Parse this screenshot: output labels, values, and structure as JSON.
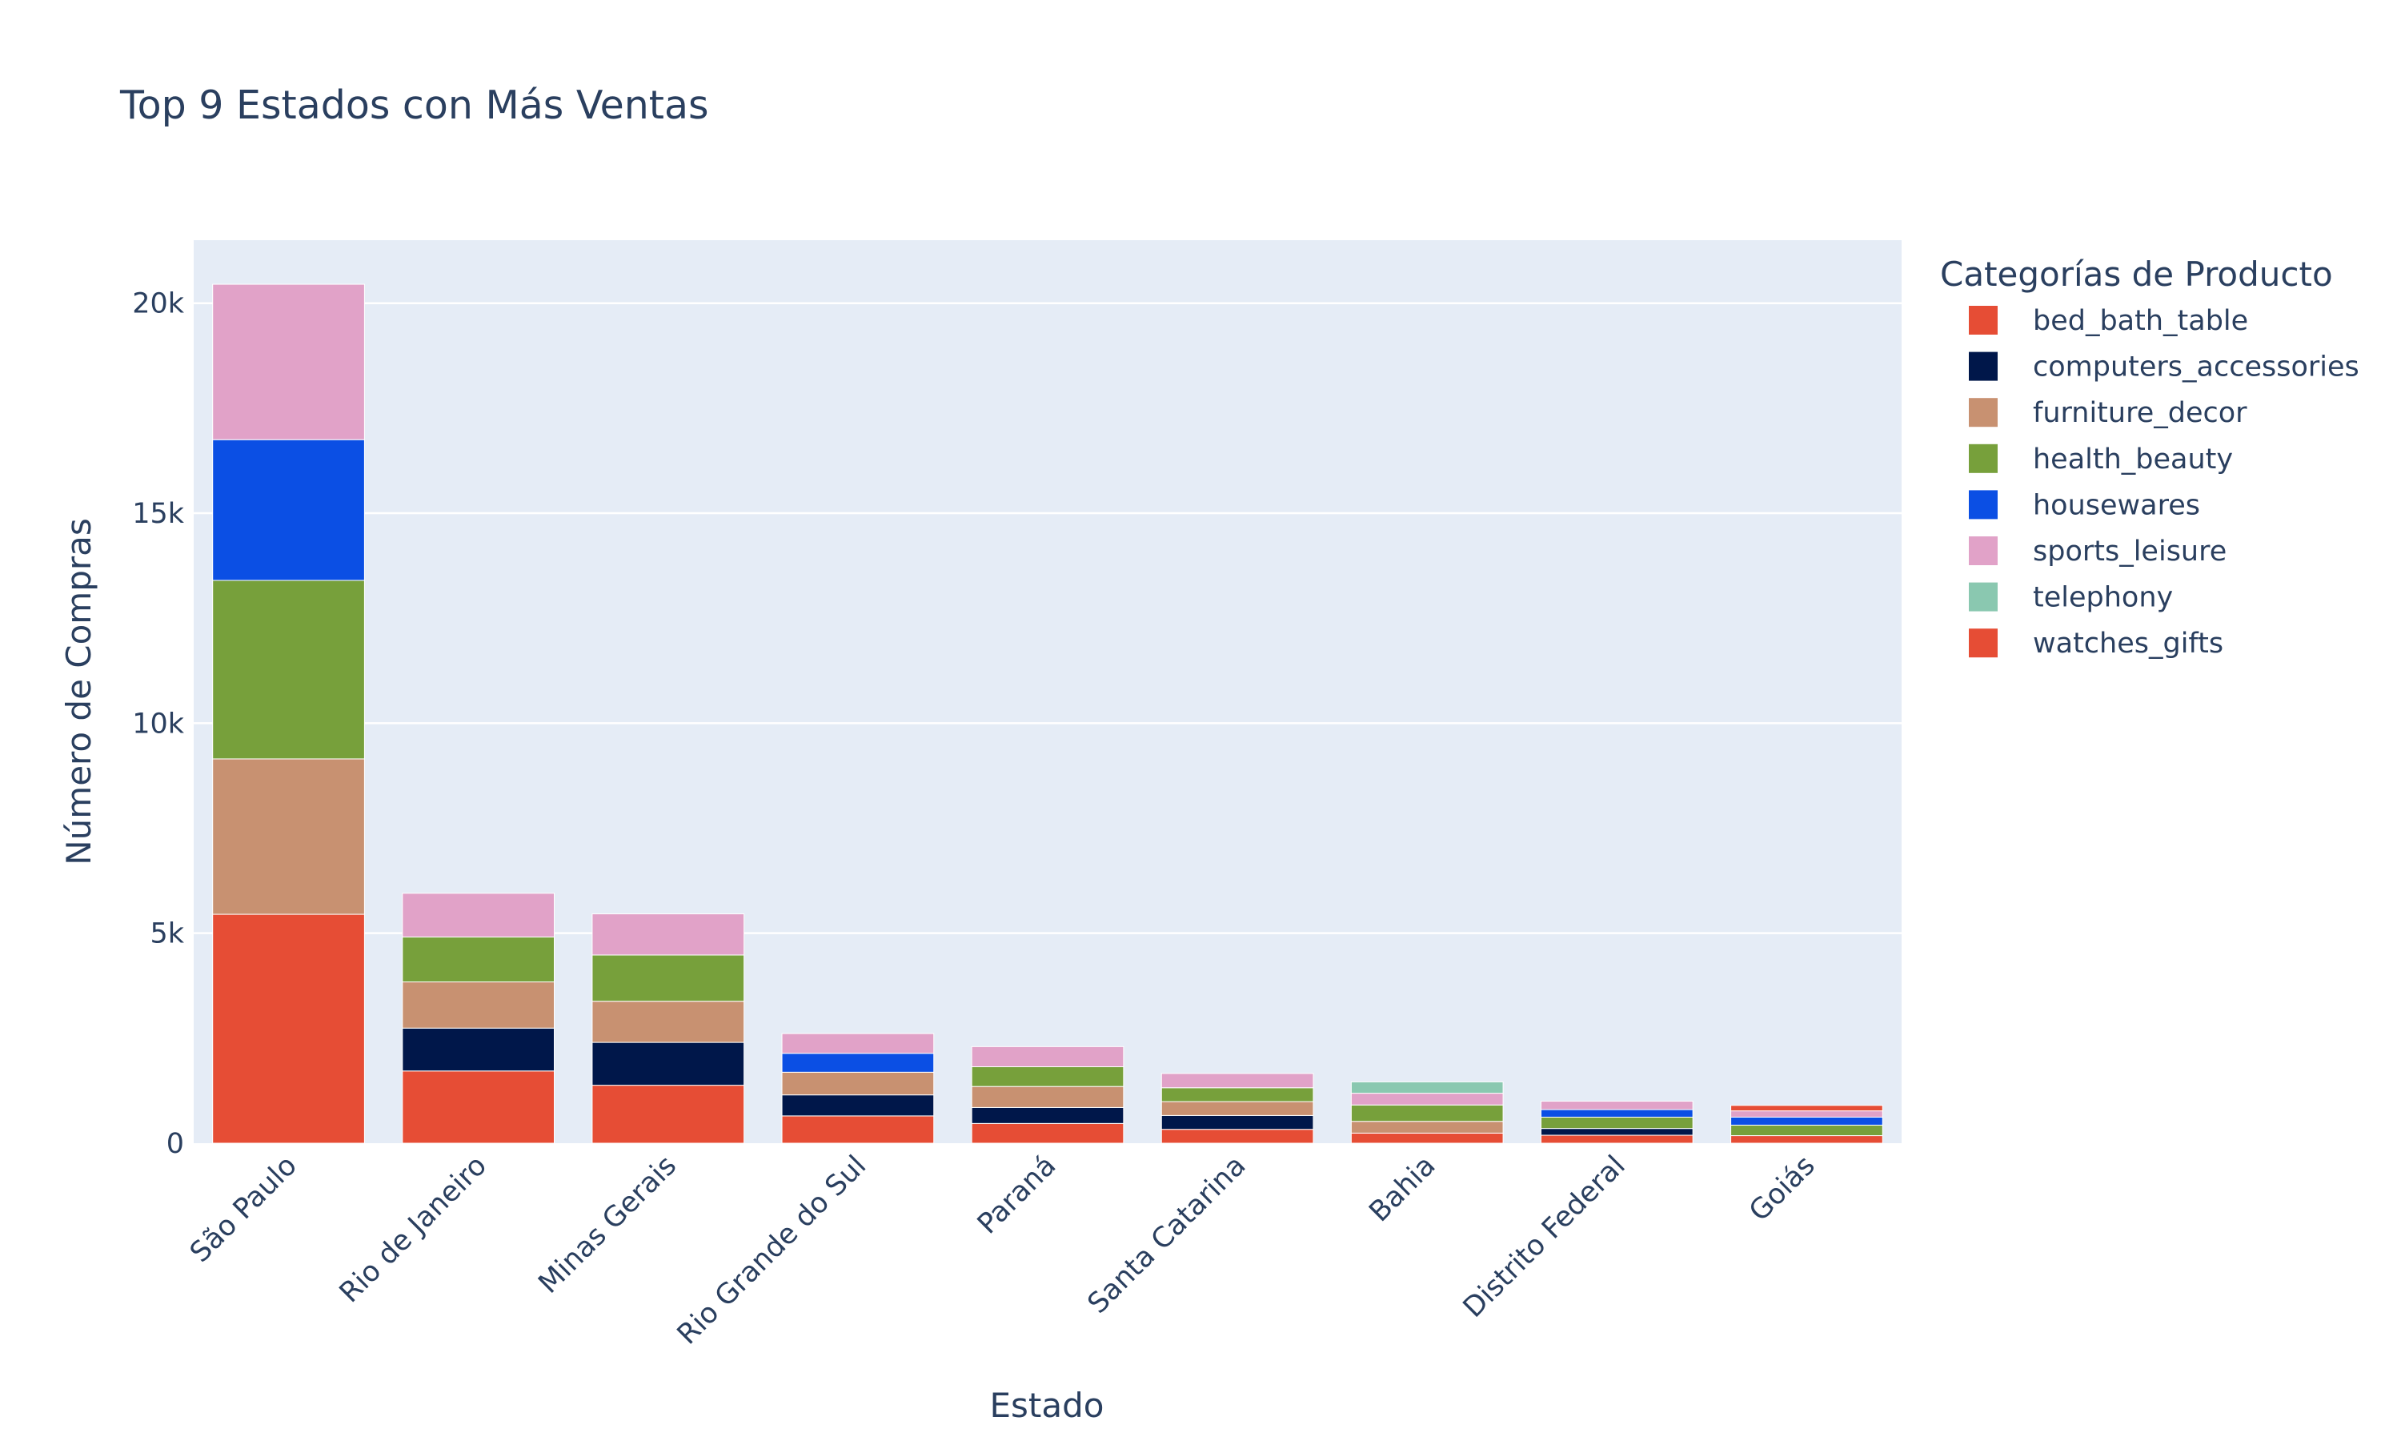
{
  "chart_data": {
    "type": "bar",
    "barmode": "stack",
    "title": "Top 9 Estados con Más Ventas",
    "xlabel": "Estado",
    "ylabel": "Número de Compras",
    "ylim": [
      0,
      21500
    ],
    "yticks": [
      0,
      5000,
      10000,
      15000,
      20000
    ],
    "ytick_labels": [
      "0",
      "5k",
      "10k",
      "15k",
      "20k"
    ],
    "grid": true,
    "legend": {
      "title": "Categorías de Producto",
      "placement": "right"
    },
    "plot_background": "#e5ecf6",
    "categories": [
      "São Paulo",
      "Rio de Janeiro",
      "Minas Gerais",
      "Rio Grande do Sul",
      "Paraná",
      "Santa Catarina",
      "Bahia",
      "Distrito Federal",
      "Goiás"
    ],
    "series": [
      {
        "name": "bed_bath_table",
        "color": "#e64d35",
        "values": [
          5450,
          1720,
          1380,
          650,
          470,
          330,
          240,
          190,
          180
        ]
      },
      {
        "name": "computers_accessories",
        "color": "#00174a",
        "values": [
          0,
          1020,
          1020,
          500,
          380,
          330,
          0,
          160,
          0
        ]
      },
      {
        "name": "furniture_decor",
        "color": "#c89171",
        "values": [
          3700,
          1100,
          980,
          540,
          500,
          330,
          280,
          0,
          0
        ]
      },
      {
        "name": "health_beauty",
        "color": "#77a03b",
        "values": [
          4250,
          1070,
          1100,
          0,
          470,
          330,
          390,
          270,
          250
        ]
      },
      {
        "name": "housewares",
        "color": "#0b4fe4",
        "values": [
          3350,
          0,
          0,
          450,
          0,
          0,
          0,
          180,
          190
        ]
      },
      {
        "name": "sports_leisure",
        "color": "#e1a2c8",
        "values": [
          3700,
          1040,
          980,
          470,
          480,
          340,
          280,
          200,
          150
        ]
      },
      {
        "name": "telephony",
        "color": "#8ac8b0",
        "values": [
          0,
          0,
          0,
          0,
          0,
          0,
          270,
          0,
          0
        ]
      },
      {
        "name": "watches_gifts",
        "color": "#e64d35",
        "values": [
          0,
          0,
          0,
          0,
          0,
          0,
          0,
          0,
          130
        ]
      }
    ]
  }
}
